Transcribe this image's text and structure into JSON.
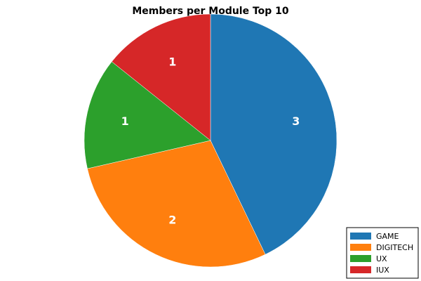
{
  "chart_data": {
    "type": "pie",
    "title": "Members per Module Top 10",
    "categories": [
      "GAME",
      "DIGITECH",
      "UX",
      "IUX"
    ],
    "values": [
      3,
      2,
      1,
      1
    ],
    "data_labels": [
      "3",
      "2",
      "1",
      "1"
    ],
    "colors": [
      "#1f77b4",
      "#ff7f0e",
      "#2ca02c",
      "#d62728"
    ],
    "start_angle": "top (12 o'clock)",
    "direction": "clockwise",
    "legend": {
      "placement": "bottom-right",
      "entries": [
        "GAME",
        "DIGITECH",
        "UX",
        "IUX"
      ]
    }
  }
}
